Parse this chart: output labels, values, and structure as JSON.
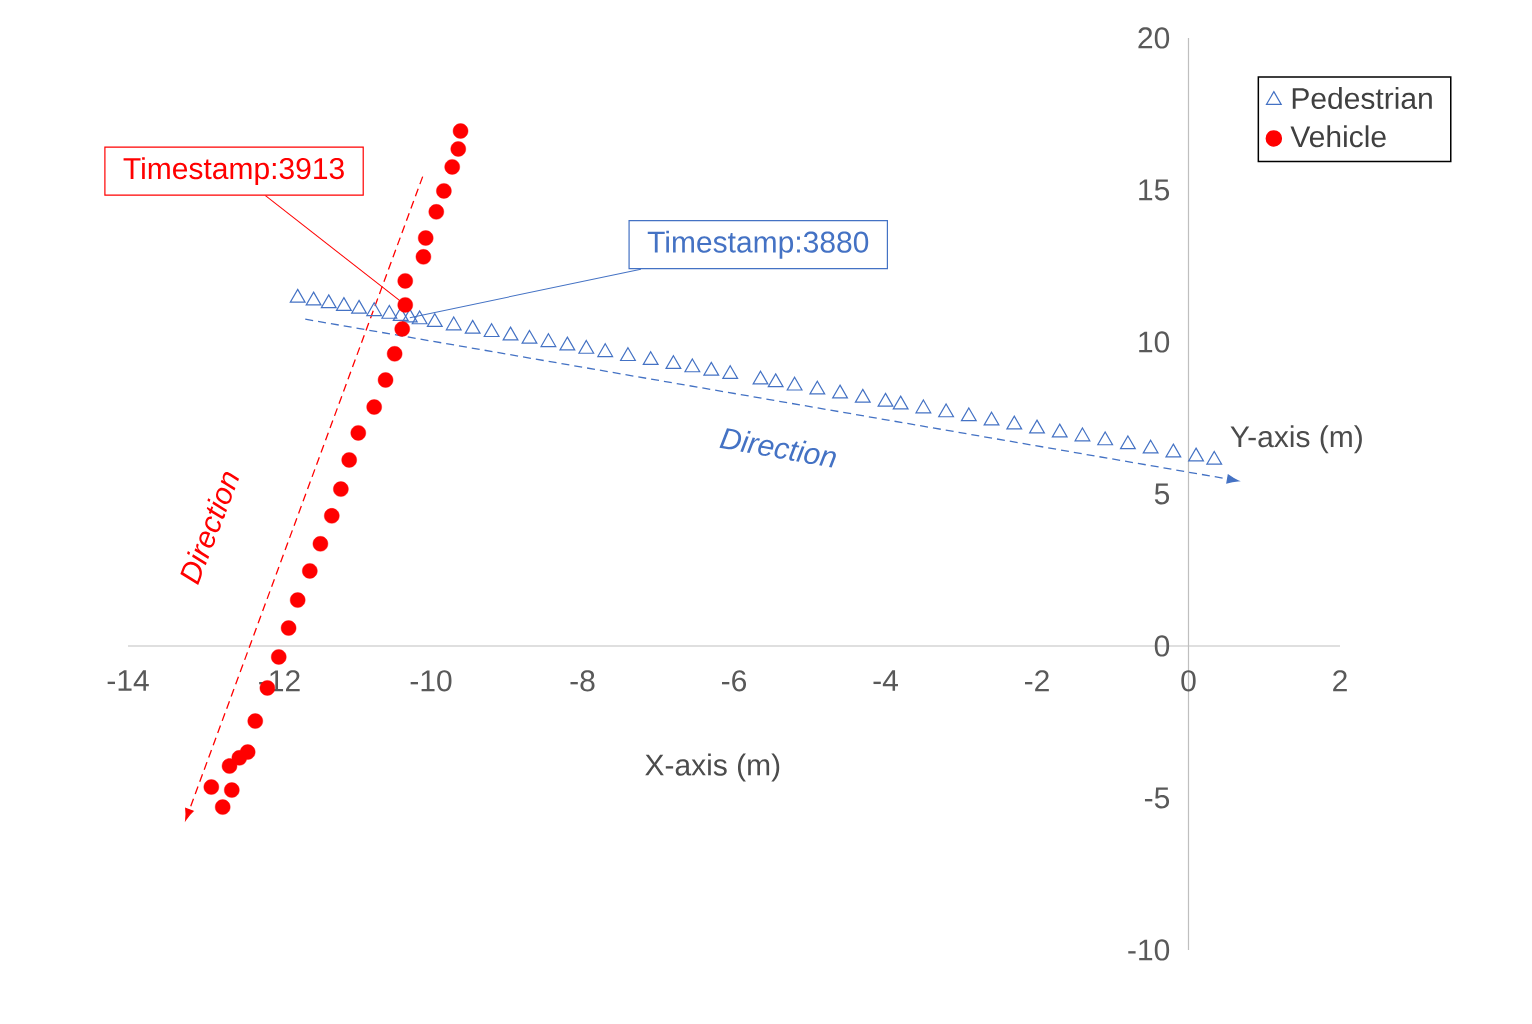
{
  "chart_data": {
    "type": "scatter",
    "xlabel": "X-axis (m)",
    "ylabel": "Y-axis (m)",
    "xlim": [
      -14,
      2
    ],
    "ylim": [
      -10,
      20
    ],
    "xticks": [
      -14,
      -12,
      -10,
      -8,
      -6,
      -4,
      -2,
      0,
      2
    ],
    "yticks": [
      -10,
      -5,
      0,
      5,
      10,
      15,
      20
    ],
    "grid": false,
    "legend": "top right",
    "series": [
      {
        "name": "Pedestrian",
        "color": "#4472c4",
        "marker": "triangle",
        "x": [
          -11.76,
          -11.55,
          -11.35,
          -11.15,
          -10.95,
          -10.75,
          -10.55,
          -10.4,
          -10.28,
          -10.15,
          -9.95,
          -9.7,
          -9.45,
          -9.2,
          -8.95,
          -8.7,
          -8.45,
          -8.2,
          -7.95,
          -7.7,
          -7.4,
          -7.1,
          -6.8,
          -6.55,
          -6.3,
          -6.05,
          -5.65,
          -5.45,
          -5.2,
          -4.9,
          -4.6,
          -4.3,
          -4.0,
          -3.8,
          -3.5,
          -3.2,
          -2.9,
          -2.6,
          -2.3,
          -2.0,
          -1.7,
          -1.4,
          -1.1,
          -0.8,
          -0.5,
          -0.2,
          0.1,
          0.34
        ],
        "values": [
          11.45,
          11.36,
          11.27,
          11.18,
          11.09,
          11.01,
          10.92,
          10.85,
          10.8,
          10.74,
          10.65,
          10.54,
          10.43,
          10.32,
          10.21,
          10.1,
          9.99,
          9.88,
          9.77,
          9.66,
          9.53,
          9.4,
          9.27,
          9.16,
          9.05,
          8.94,
          8.76,
          8.67,
          8.56,
          8.43,
          8.3,
          8.16,
          8.03,
          7.94,
          7.81,
          7.68,
          7.55,
          7.41,
          7.28,
          7.15,
          7.02,
          6.89,
          6.76,
          6.63,
          6.49,
          6.36,
          6.23,
          6.12
        ]
      },
      {
        "name": "Vehicle",
        "color": "#ff0000",
        "marker": "circle",
        "x": [
          -9.61,
          -9.64,
          -9.72,
          -9.83,
          -9.93,
          -10.07,
          -10.1,
          -10.34,
          -10.34,
          -10.38,
          -10.48,
          -10.6,
          -10.75,
          -10.96,
          -11.08,
          -11.19,
          -11.31,
          -11.46,
          -11.6,
          -11.76,
          -11.88,
          -12.01,
          -12.16,
          -12.32,
          -12.42,
          -12.53,
          -12.66,
          -12.9,
          -12.63,
          -12.75
        ],
        "values": [
          16.94,
          16.35,
          15.76,
          14.97,
          14.28,
          13.42,
          12.8,
          12.01,
          11.22,
          10.43,
          9.61,
          8.75,
          7.86,
          7.01,
          6.12,
          5.16,
          4.28,
          3.36,
          2.47,
          1.51,
          0.59,
          -0.36,
          -1.38,
          -2.47,
          -3.49,
          -3.68,
          -3.95,
          -4.64,
          -4.74,
          -5.3
        ]
      }
    ],
    "annotations": [
      {
        "text": "Timestamp:3913",
        "x": -10.34,
        "y": 11.22
      },
      {
        "text": "Timestamp:3880",
        "x": -10.28,
        "y": 10.8
      },
      "Direction",
      "Direction"
    ]
  }
}
